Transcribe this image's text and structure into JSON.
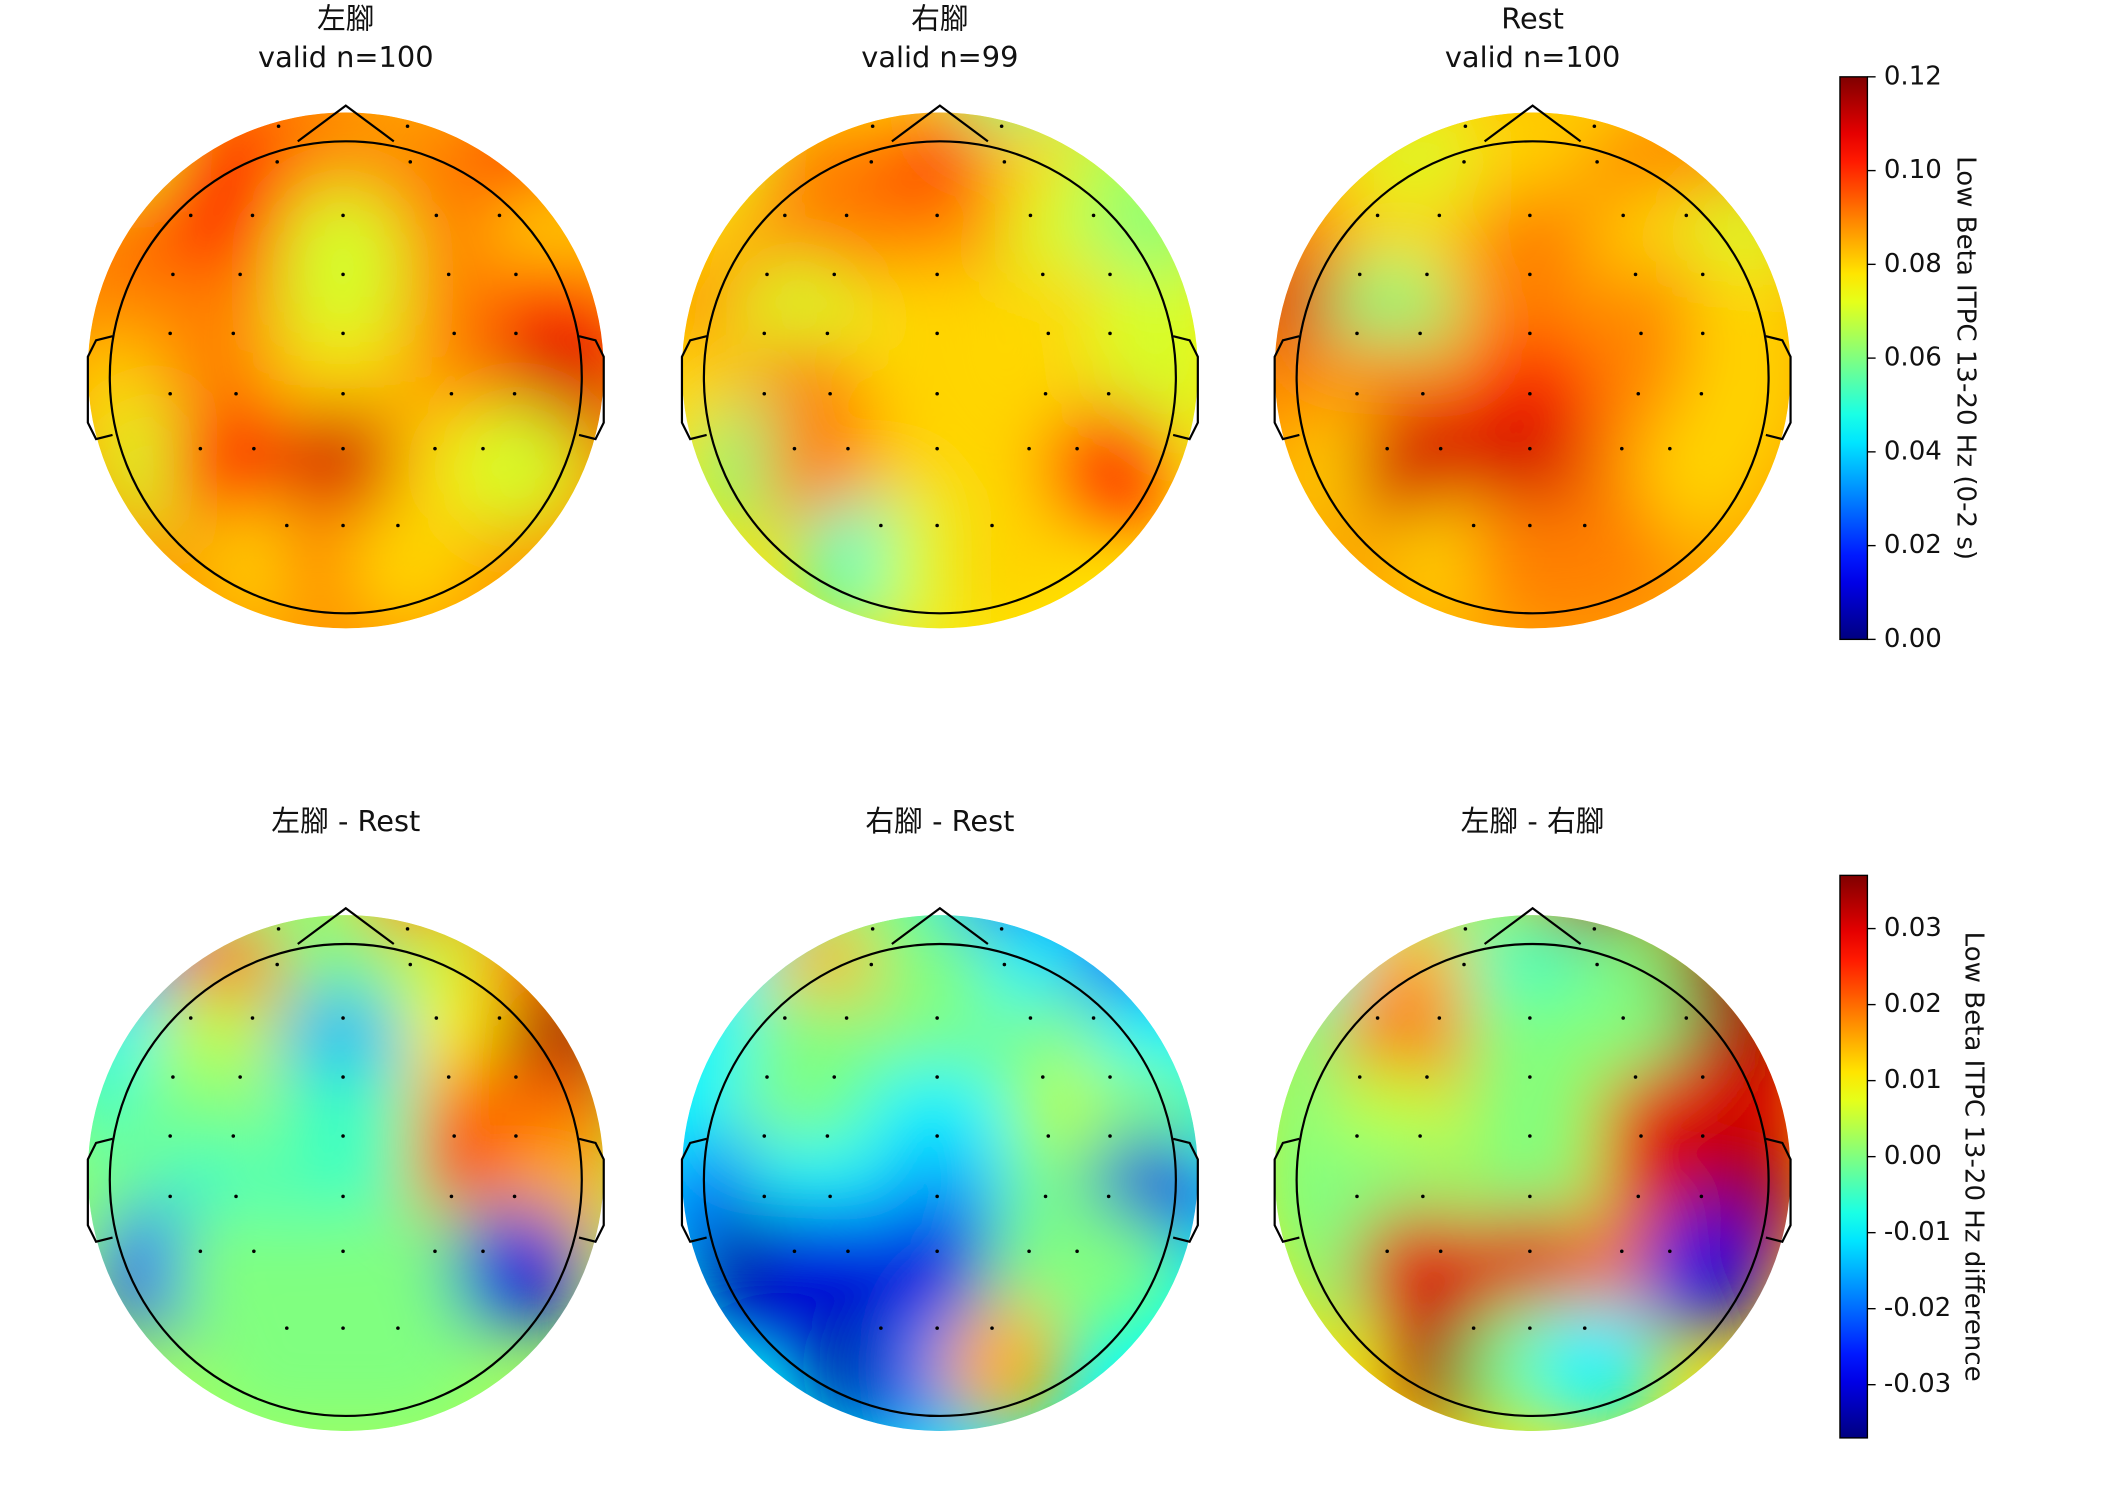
{
  "chart_data": [
    {
      "type": "topomap",
      "colorbar": {
        "label": "Low Beta ITPC 13-20 Hz (0-2 s)",
        "ylim": [
          0,
          0.12
        ],
        "yticks": [
          {
            "value": 0,
            "label": "0.00"
          },
          0.02,
          0.04,
          0.06,
          0.08,
          {
            "value": 0.1,
            "label": "0.10"
          },
          {
            "value": 0.12,
            "label": "0.12"
          }
        ]
      },
      "panels": [
        {
          "title": [
            "左腳",
            "valid n=100"
          ],
          "values": [
            0.085,
            0.085,
            0.09,
            0.085,
            0.07,
            0.1,
            0.09,
            0.09,
            0.1,
            0.09,
            0.1,
            0.07,
            0.09,
            0.08,
            0.09,
            0.09,
            0.07,
            0.09,
            0.1,
            0.08,
            0.09,
            0.08,
            0.09,
            0.11,
            0.07,
            0.1,
            0.11,
            0.08,
            0.07,
            0.08,
            0.09,
            0.08
          ]
        },
        {
          "title": [
            "右腳",
            "valid n=99"
          ],
          "values": [
            0.085,
            0.08,
            0.08,
            0.06,
            0.07,
            0.09,
            0.1,
            0.08,
            0.065,
            0.08,
            0.09,
            0.09,
            0.07,
            0.06,
            0.09,
            0.07,
            0.08,
            0.08,
            0.07,
            0.08,
            0.09,
            0.08,
            0.08,
            0.07,
            0.06,
            0.09,
            0.08,
            0.08,
            0.1,
            0.05,
            0.07,
            0.08
          ]
        },
        {
          "title": [
            "Rest",
            "valid n=100"
          ],
          "values": [
            0.08,
            0.08,
            0.08,
            0.08,
            0.08,
            0.07,
            0.08,
            0.09,
            0.09,
            0.09,
            0.08,
            0.09,
            0.08,
            0.07,
            0.11,
            0.06,
            0.09,
            0.09,
            0.08,
            0.09,
            0.09,
            0.1,
            0.09,
            0.08,
            0.08,
            0.11,
            0.11,
            0.09,
            0.08,
            0.08,
            0.09,
            0.09
          ]
        }
      ]
    },
    {
      "type": "topomap",
      "colorbar": {
        "label": "Low Beta ITPC 13-20 Hz difference",
        "ylim": [
          -0.037,
          0.037
        ],
        "yticks": [
          -0.03,
          -0.02,
          -0.01,
          {
            "value": 0,
            "label": "0.00"
          },
          0.01,
          0.02,
          0.03
        ]
      },
      "panels": [
        {
          "title": [
            "左腳 - Rest"
          ],
          "values": [
            0.005,
            0.01,
            0.0,
            0.02,
            -0.02,
            0.02,
            0.0,
            0.005,
            0.02,
            -0.01,
            0.005,
            -0.015,
            0.01,
            0.035,
            -0.005,
            0.0,
            -0.005,
            0.02,
            0.02,
            0.0,
            -0.005,
            -0.005,
            0.025,
            0.015,
            -0.025,
            0.0,
            0.0,
            0.0,
            -0.03,
            0.0,
            0.0,
            0.0
          ]
        },
        {
          "title": [
            "右腳 - Rest"
          ],
          "values": [
            0.005,
            -0.005,
            0.0,
            -0.02,
            -0.01,
            0.015,
            0.0,
            -0.01,
            -0.025,
            -0.01,
            0.0,
            0.0,
            0.0,
            -0.01,
            -0.01,
            0.0,
            -0.01,
            0.005,
            0.0,
            -0.02,
            -0.01,
            -0.015,
            0.0,
            -0.03,
            -0.035,
            -0.03,
            -0.03,
            0.0,
            0.0,
            -0.035,
            -0.02,
            0.015
          ]
        },
        {
          "title": [
            "左腳 - 右腳"
          ],
          "values": [
            0.0,
            0.03,
            0.0,
            0.035,
            -0.01,
            0.015,
            -0.005,
            0.0,
            0.035,
            0.0,
            0.02,
            0.0,
            0.0,
            0.035,
            0.0,
            0.005,
            0.0,
            0.03,
            0.03,
            0.0,
            0.0,
            0.0,
            0.03,
            0.035,
            0.0,
            0.03,
            0.03,
            0.02,
            -0.03,
            0.035,
            0.0,
            -0.01
          ]
        }
      ]
    }
  ]
}
